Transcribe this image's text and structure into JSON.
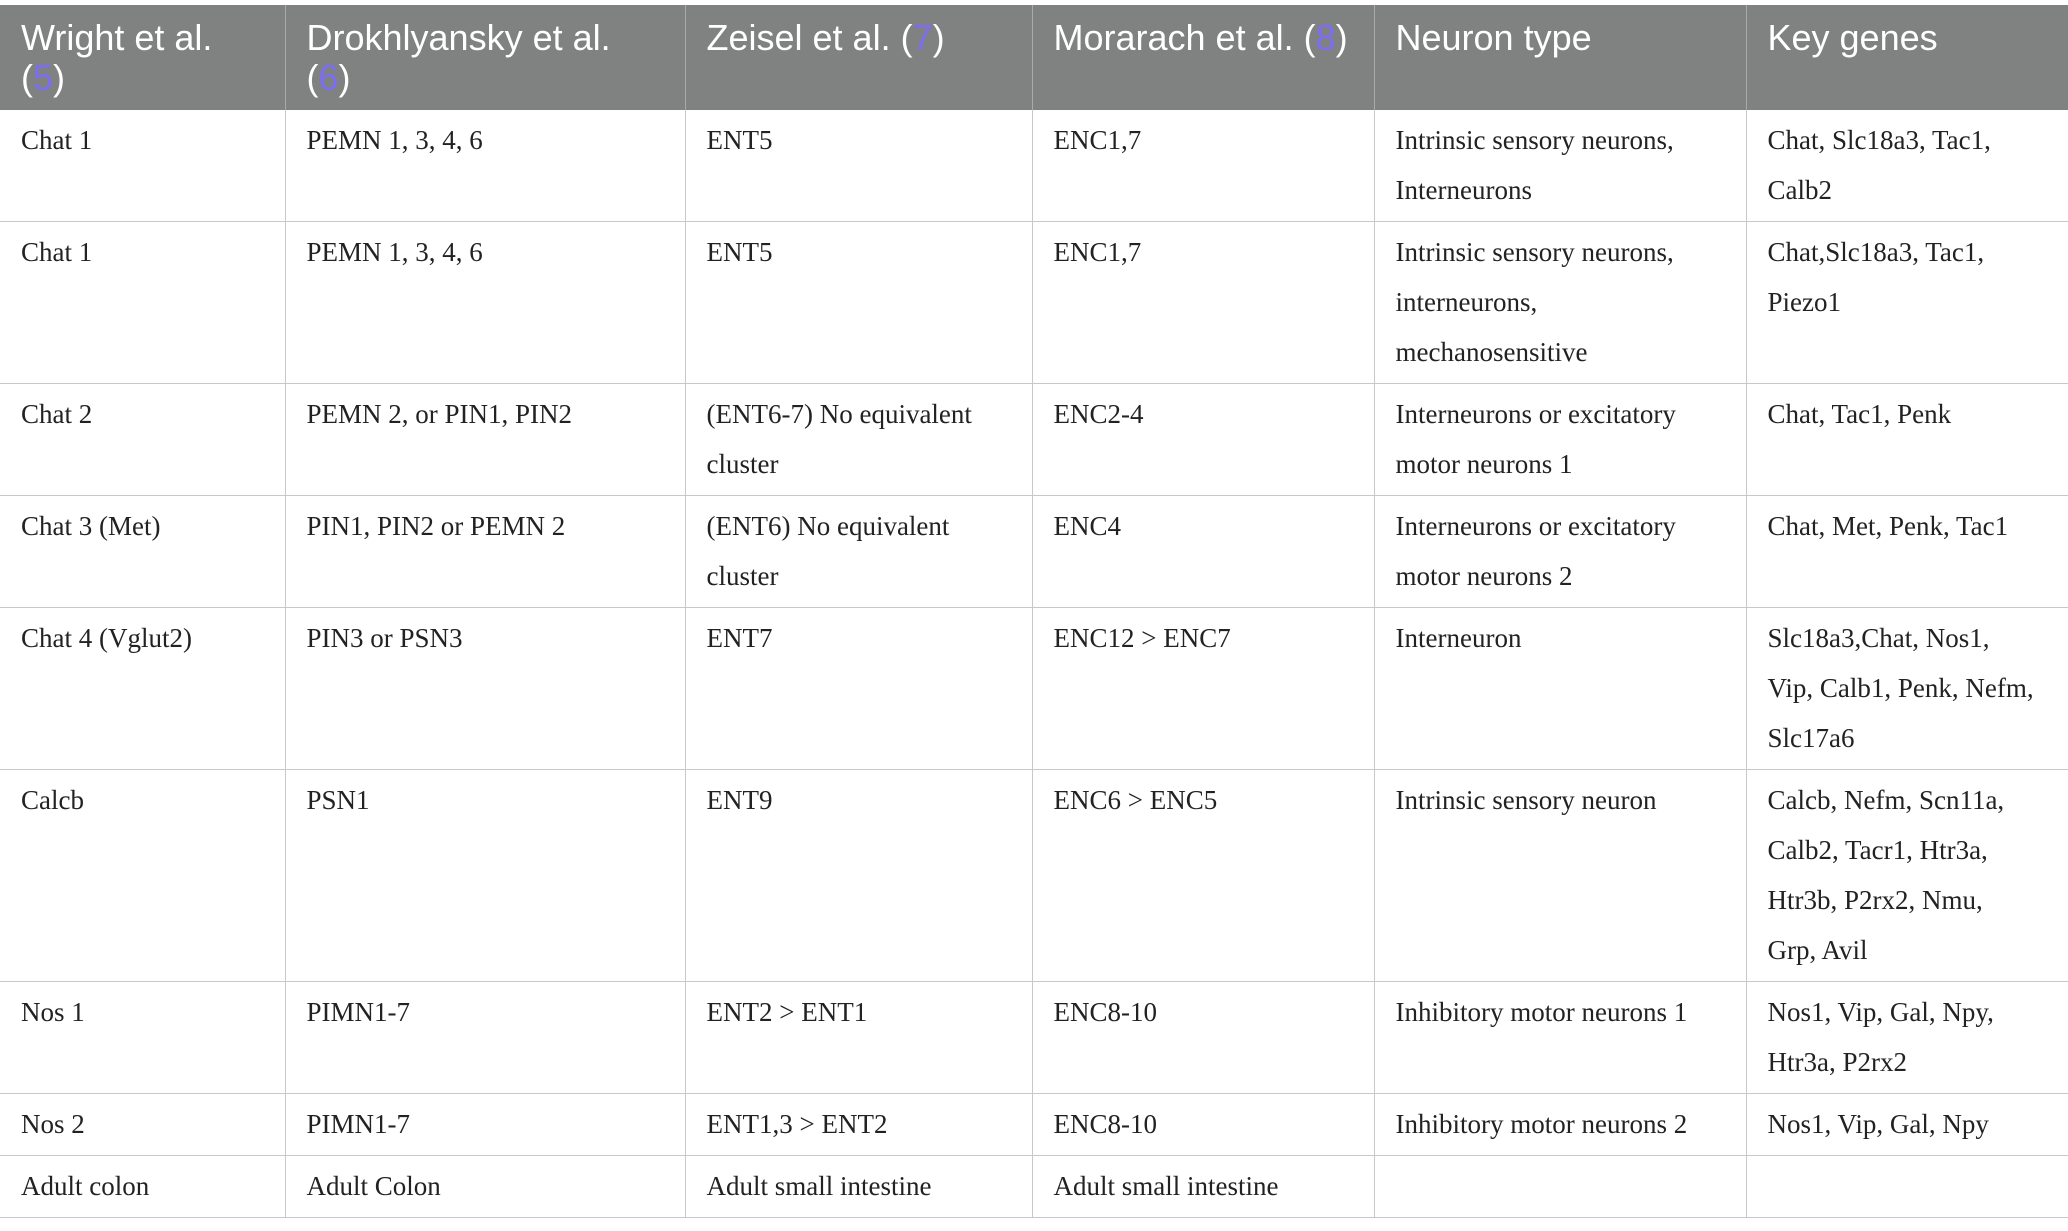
{
  "table": {
    "headers": [
      {
        "text": "Wright et al. (",
        "ref": "5",
        "after": ")"
      },
      {
        "text": "Drokhlyansky et al. (",
        "ref": "6",
        "after": ")"
      },
      {
        "text": "Zeisel et al. (",
        "ref": "7",
        "after": ")"
      },
      {
        "text": "Morarach et al. (",
        "ref": "8",
        "after": ")"
      },
      {
        "text": "Neuron type",
        "ref": "",
        "after": ""
      },
      {
        "text": "Key genes",
        "ref": "",
        "after": ""
      }
    ],
    "rows": [
      [
        "Chat 1",
        "PEMN 1, 3, 4, 6",
        "ENT5",
        "ENC1,7",
        "Intrinsic sensory neurons,\nInterneurons",
        "Chat, Slc18a3, Tac1,\nCalb2"
      ],
      [
        "Chat 1",
        "PEMN 1, 3, 4, 6",
        "ENT5",
        "ENC1,7",
        "Intrinsic sensory neurons,\ninterneurons,\nmechanosensitive",
        "Chat,Slc18a3, Tac1,\nPiezo1"
      ],
      [
        "Chat 2",
        "PEMN 2, or PIN1, PIN2",
        "(ENT6-7) No equivalent\ncluster",
        "ENC2-4",
        "Interneurons or excitatory\nmotor neurons 1",
        "Chat, Tac1, Penk"
      ],
      [
        "Chat 3 (Met)",
        "PIN1, PIN2 or PEMN 2",
        "(ENT6) No equivalent\ncluster",
        "ENC4",
        "Interneurons or excitatory\nmotor neurons 2",
        "Chat, Met, Penk, Tac1"
      ],
      [
        "Chat 4 (Vglut2)",
        "PIN3 or PSN3",
        "ENT7",
        "ENC12 > ENC7",
        "Interneuron",
        "Slc18a3,Chat, Nos1,\nVip, Calb1, Penk, Nefm,\nSlc17a6"
      ],
      [
        "Calcb",
        "PSN1",
        "ENT9",
        "ENC6 > ENC5",
        "Intrinsic sensory neuron",
        "Calcb, Nefm, Scn11a,\nCalb2, Tacr1, Htr3a,\nHtr3b, P2rx2, Nmu,\nGrp, Avil"
      ],
      [
        "Nos 1",
        "PIMN1-7",
        "ENT2 > ENT1",
        "ENC8-10",
        "Inhibitory motor neurons 1",
        "Nos1, Vip, Gal, Npy,\nHtr3a, P2rx2"
      ],
      [
        "Nos 2",
        "PIMN1-7",
        "ENT1,3 > ENT2",
        "ENC8-10",
        "Inhibitory motor neurons 2",
        "Nos1, Vip, Gal, Npy"
      ],
      [
        "Adult colon",
        "Adult Colon",
        "Adult small intestine",
        "Adult small intestine",
        "",
        ""
      ]
    ]
  }
}
